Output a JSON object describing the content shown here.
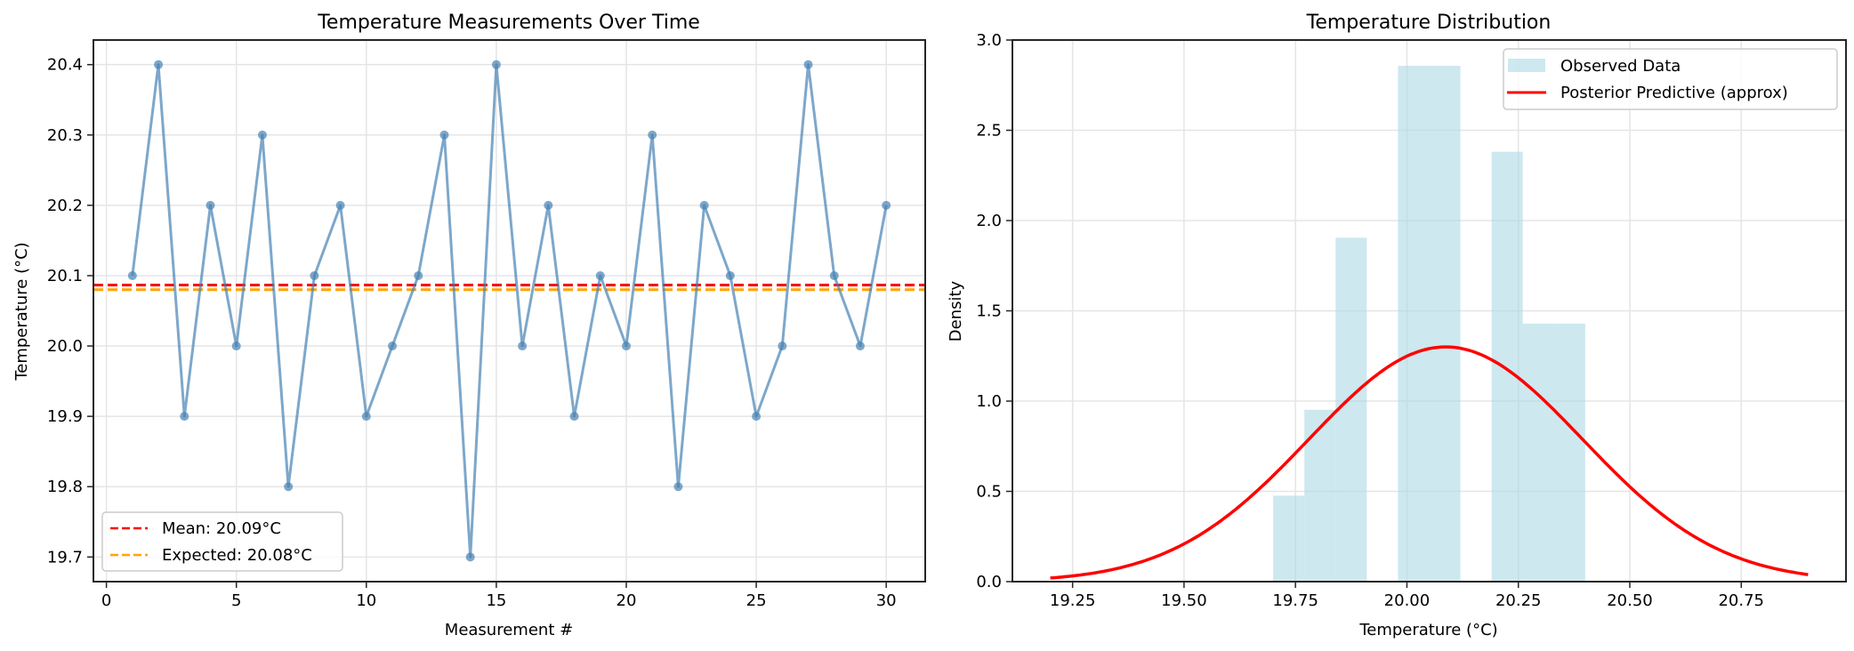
{
  "chart_data": [
    {
      "type": "line",
      "title": "Temperature Measurements Over Time",
      "xlabel": "Measurement #",
      "ylabel": "Temperature (°C)",
      "xlim": [
        -0.5,
        31.5
      ],
      "ylim": [
        19.665,
        20.435
      ],
      "xticks": [
        0,
        5,
        10,
        15,
        20,
        25,
        30
      ],
      "yticks": [
        19.7,
        19.8,
        19.9,
        20.0,
        20.1,
        20.2,
        20.3,
        20.4
      ],
      "ytick_labels": [
        "19.7",
        "19.8",
        "19.9",
        "20.0",
        "20.1",
        "20.2",
        "20.3",
        "20.4"
      ],
      "grid": true,
      "legend_position": "lower left",
      "series": [
        {
          "name": "Measurements",
          "color": "#4682b4",
          "marker": "o",
          "x": [
            1,
            2,
            3,
            4,
            5,
            6,
            7,
            8,
            9,
            10,
            11,
            12,
            13,
            14,
            15,
            16,
            17,
            18,
            19,
            20,
            21,
            22,
            23,
            24,
            25,
            26,
            27,
            28,
            29,
            30
          ],
          "values": [
            20.1,
            20.4,
            19.9,
            20.2,
            20.0,
            20.3,
            19.8,
            20.1,
            20.2,
            19.9,
            20.0,
            20.1,
            20.3,
            19.7,
            20.4,
            20.0,
            20.2,
            19.9,
            20.1,
            20.0,
            20.3,
            19.8,
            20.2,
            20.1,
            19.9,
            20.0,
            20.4,
            20.1,
            20.0,
            20.2
          ]
        }
      ],
      "hlines": [
        {
          "name": "Mean: 20.09°C",
          "value": 20.0867,
          "color": "#ff0000",
          "style": "dashed"
        },
        {
          "name": "Expected: 20.08°C",
          "value": 20.08,
          "color": "#ffa500",
          "style": "dashed"
        }
      ],
      "legend": [
        "Mean: 20.09°C",
        "Expected: 20.08°C"
      ]
    },
    {
      "type": "bar",
      "title": "Temperature Distribution",
      "xlabel": "Temperature (°C)",
      "ylabel": "Density",
      "xlim": [
        19.115,
        20.985
      ],
      "ylim": [
        0,
        3.0
      ],
      "xticks": [
        19.25,
        19.5,
        19.75,
        20.0,
        20.25,
        20.5,
        20.75
      ],
      "xtick_labels": [
        "19.25",
        "19.50",
        "19.75",
        "20.00",
        "20.25",
        "20.50",
        "20.75"
      ],
      "yticks": [
        0.0,
        0.5,
        1.0,
        1.5,
        2.0,
        2.5,
        3.0
      ],
      "ytick_labels": [
        "0.0",
        "0.5",
        "1.0",
        "1.5",
        "2.0",
        "2.5",
        "3.0"
      ],
      "grid": true,
      "legend_position": "upper right",
      "histogram": {
        "name": "Observed Data",
        "color": "#add8e6",
        "bin_edges": [
          19.7,
          19.77,
          19.84,
          19.91,
          19.98,
          20.05,
          20.12,
          20.19,
          20.26,
          20.33,
          20.4
        ],
        "density": [
          0.476,
          0.952,
          1.905,
          0.0,
          2.857,
          2.857,
          0.0,
          2.381,
          1.429,
          1.429
        ]
      },
      "curve": {
        "name": "Posterior Predictive (approx)",
        "color": "#ff0000",
        "distribution": "normal",
        "mean": 20.087,
        "sd": 0.307,
        "x_range": [
          19.2,
          20.9
        ],
        "peak_density": 1.3
      },
      "legend": [
        "Observed Data",
        "Posterior Predictive (approx)"
      ]
    }
  ],
  "ui": {
    "left": {
      "title": "Temperature Measurements Over Time",
      "xlabel": "Measurement #",
      "ylabel": "Temperature (°C)",
      "legend_mean": "Mean: 20.09°C",
      "legend_expected": "Expected: 20.08°C"
    },
    "right": {
      "title": "Temperature Distribution",
      "xlabel": "Temperature (°C)",
      "ylabel": "Density",
      "legend_observed": "Observed Data",
      "legend_posterior": "Posterior Predictive (approx)"
    }
  }
}
